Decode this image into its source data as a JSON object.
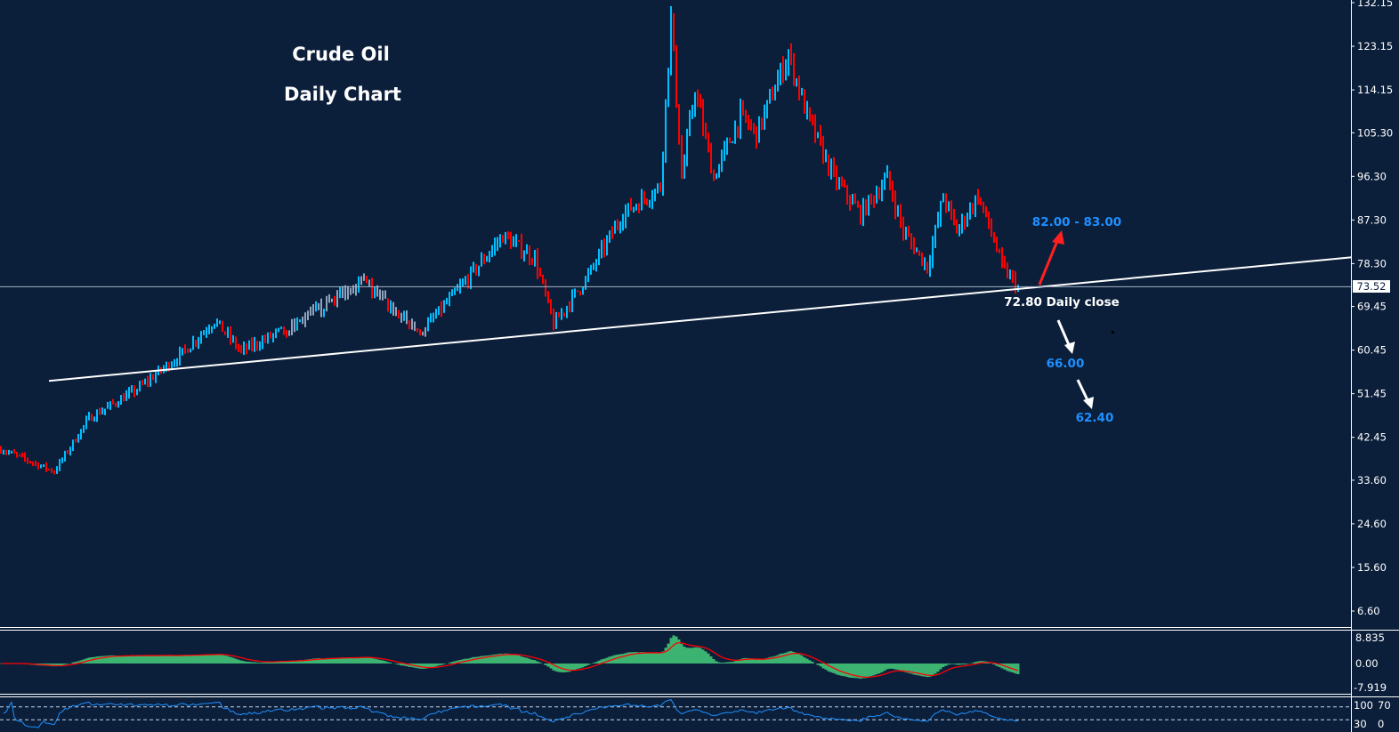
{
  "chart_data": {
    "type": "candlestick",
    "title_lines": [
      "Crude Oil",
      "Daily Chart"
    ],
    "y_ticks": [
      "132.15",
      "123.15",
      "114.15",
      "105.30",
      "96.30",
      "87.30",
      "78.30",
      "69.45",
      "60.45",
      "51.45",
      "42.45",
      "33.60",
      "24.60",
      "15.60",
      "6.60"
    ],
    "ylim": [
      6.6,
      132.15
    ],
    "current_price": "73.52",
    "colors": {
      "background": "#0b1f3b",
      "up": "#00bfff",
      "down": "#ff0000",
      "neutral": "#8fa3bd",
      "macd_hist": "#3cb371",
      "macd_signal": "#ff0000",
      "rsi": "#1e90ff",
      "trendline": "#ffffff",
      "target_text": "#1e90ff"
    },
    "price_path": [
      [
        0,
        40
      ],
      [
        20,
        35.4
      ],
      [
        33,
        46.4
      ],
      [
        50,
        52
      ],
      [
        67,
        59.3
      ],
      [
        80,
        66.6
      ],
      [
        90,
        60.2
      ],
      [
        110,
        65.7
      ],
      [
        135,
        74.9
      ],
      [
        157,
        63.8
      ],
      [
        173,
        74
      ],
      [
        188,
        84
      ],
      [
        200,
        79.4
      ],
      [
        207,
        65.7
      ],
      [
        220,
        75.8
      ],
      [
        233,
        88.6
      ],
      [
        247,
        94.1
      ],
      [
        251,
        129
      ],
      [
        255,
        96
      ],
      [
        260,
        114.3
      ],
      [
        267,
        96
      ],
      [
        277,
        108.8
      ],
      [
        283,
        105.1
      ],
      [
        295,
        121.6
      ],
      [
        302,
        108.8
      ],
      [
        312,
        96
      ],
      [
        322,
        88.6
      ],
      [
        332,
        96
      ],
      [
        338,
        85
      ],
      [
        347,
        77.6
      ],
      [
        353,
        92.3
      ],
      [
        358,
        85
      ],
      [
        366,
        92.3
      ],
      [
        372,
        83.1
      ],
      [
        375,
        77.6
      ],
      [
        381,
        73.5
      ]
    ],
    "trendline": {
      "from": [
        18,
        54.1
      ],
      "to": [
        506,
        79.6
      ]
    },
    "annotations": [
      {
        "text": "82.00 - 83.00",
        "color": "#1e90ff"
      },
      {
        "text": "72.80 Daily close",
        "color": "#ffffff"
      },
      {
        "text": "66.00",
        "color": "#1e90ff"
      },
      {
        "text": "62.40",
        "color": "#1e90ff"
      }
    ],
    "macd_panel": {
      "ticks": [
        "8.835",
        "0.00",
        "-7.919"
      ],
      "ylim": [
        -7.919,
        8.835
      ]
    },
    "rsi_panel": {
      "ticks": [
        "100",
        "70",
        "30",
        "0"
      ],
      "levels": [
        70,
        30
      ]
    }
  }
}
